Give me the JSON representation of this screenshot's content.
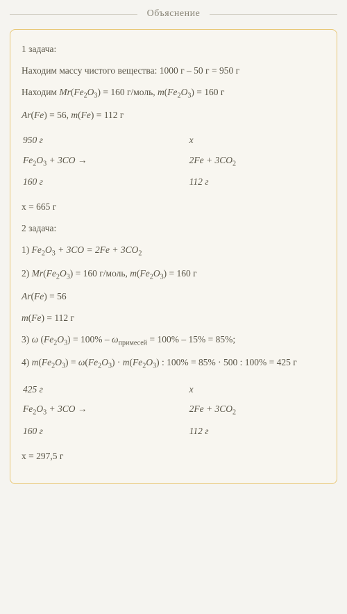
{
  "header": {
    "title": "Объяснение"
  },
  "colors": {
    "page_bg": "#f5f4f0",
    "card_bg": "#f8f6f0",
    "card_border": "#e8c878",
    "text": "#5a5648",
    "header_text": "#8a8678",
    "header_line": "#c8c4b8"
  },
  "typography": {
    "body_fontsize": 13.5,
    "header_fontsize": 14,
    "font_family": "Georgia, Times New Roman, serif"
  },
  "task1": {
    "heading": "1 задача:",
    "line_mass": {
      "prefix": "Находим массу чистого вещества: ",
      "calc": "1000 г – 50 г = 950 г"
    },
    "line_mr": {
      "prefix": "Находим ",
      "mr_label": "Mr",
      "mr_formula": "Fe₂O₃",
      "mr_value": "160 г/моль",
      "m_label": "m",
      "m_formula": "Fe₂O₃",
      "m_value": "160 г"
    },
    "line_ar": {
      "ar_label": "Ar",
      "ar_elem": "Fe",
      "ar_value": "56",
      "m_label": "m",
      "m_elem": "Fe",
      "m_value": "112 г"
    },
    "stoich": {
      "top_left": "950 г",
      "top_right": "x",
      "eq_left": "Fe₂O₃ + 3CO →",
      "eq_right": "2Fe + 3CO₂",
      "bot_left": "160 г",
      "bot_right": "112 г"
    },
    "answer": "x = 665 г"
  },
  "task2": {
    "heading": "2 задача:",
    "step1": {
      "num": "1) ",
      "eq": "Fe₂O₃ + 3CO = 2Fe + 3CO₂"
    },
    "step2": {
      "num": "2) ",
      "mr_label": "Mr",
      "mr_formula": "Fe₂O₃",
      "mr_value": "160 г/моль",
      "m_label": "m",
      "m_formula": "Fe₂O₃",
      "m_value": "160 г"
    },
    "line_ar": {
      "ar_label": "Ar",
      "ar_elem": "Fe",
      "ar_value": "56"
    },
    "line_mfe": {
      "m_label": "m",
      "m_elem": "Fe",
      "m_value": "112 г"
    },
    "step3": {
      "num": "3) ",
      "omega": "ω",
      "formula": "Fe₂O₃",
      "eq": " = 100% – ",
      "omega_sub": "примесей",
      "calc": " = 100% – 15% = 85%;"
    },
    "step4": {
      "num": "4) ",
      "expr": "m(Fe₂O₃) = ω(Fe₂O₃) · m(Fe₂O₃) : 100% = 85% · 500 : 100% = 425 г"
    },
    "stoich": {
      "top_left": "425 г",
      "top_right": "x",
      "eq_left": "Fe₂O₃ + 3CO →",
      "eq_right": "2Fe + 3CO₂",
      "bot_left": "160 г",
      "bot_right": "112 г"
    },
    "answer": "x = 297,5 г"
  }
}
